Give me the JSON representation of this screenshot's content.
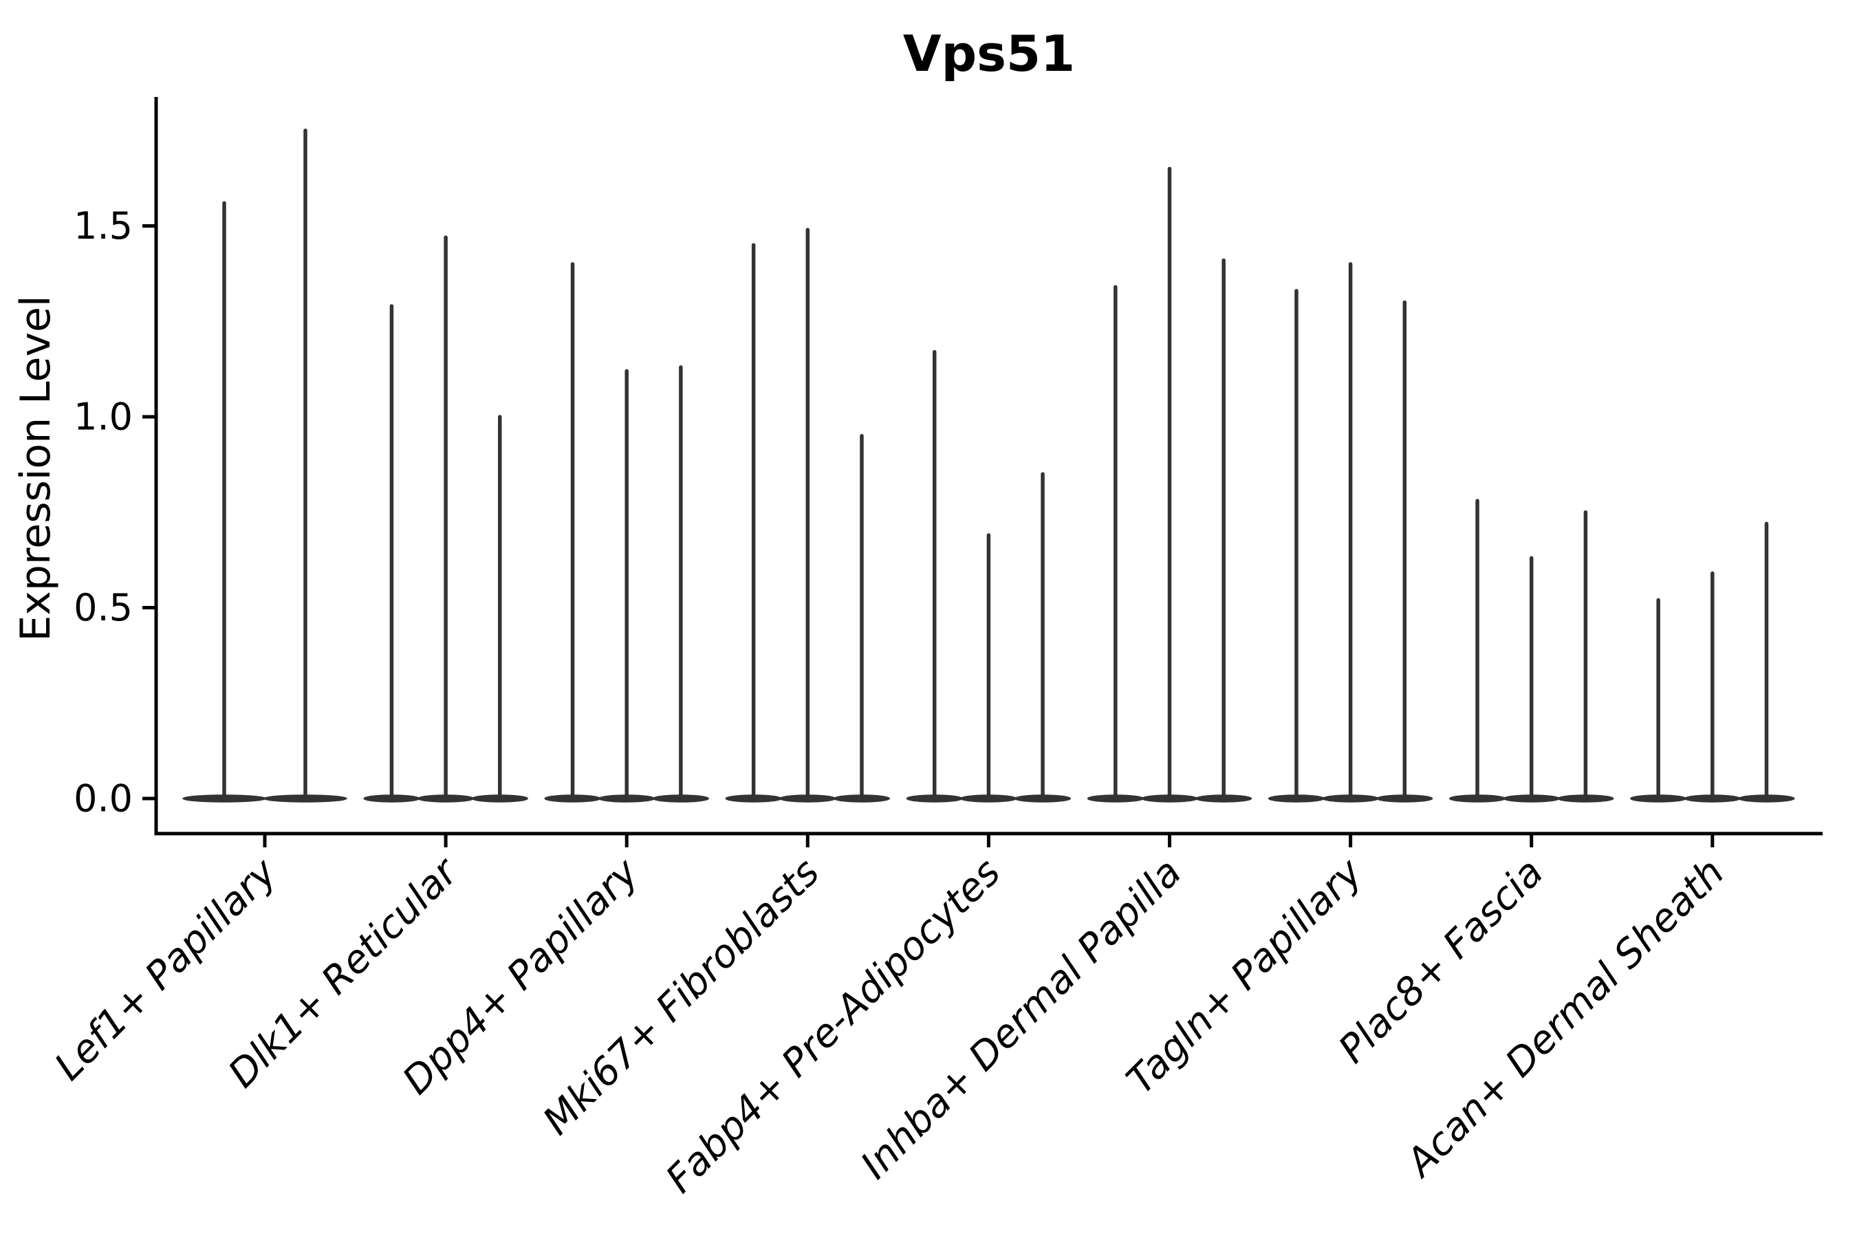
{
  "figure": {
    "title": "Vps51",
    "ylabel": "Expression Level"
  },
  "chart_data": {
    "type": "violin",
    "title": "Vps51",
    "xlabel": "",
    "ylabel": "Expression Level",
    "categories": [
      "Lef1+ Papillary",
      "Dlk1+ Reticular",
      "Dpp4+ Papillary",
      "Mki67+ Fibroblasts",
      "Fabp4+ Pre-Adipocytes",
      "Inhba+ Dermal Papilla",
      "Tagln+ Papillary",
      "Plac8+ Fascia",
      "Acan+ Dermal Sheath"
    ],
    "series": [
      {
        "category": "Lef1+ Papillary",
        "violin_maxima": [
          1.56,
          1.75
        ]
      },
      {
        "category": "Dlk1+ Reticular",
        "violin_maxima": [
          1.29,
          1.47,
          1.0
        ]
      },
      {
        "category": "Dpp4+ Papillary",
        "violin_maxima": [
          1.4,
          1.12,
          1.13
        ]
      },
      {
        "category": "Mki67+ Fibroblasts",
        "violin_maxima": [
          1.45,
          1.49,
          0.95
        ]
      },
      {
        "category": "Fabp4+ Pre-Adipocytes",
        "violin_maxima": [
          1.17,
          0.69,
          0.85
        ]
      },
      {
        "category": "Inhba+ Dermal Papilla",
        "violin_maxima": [
          1.34,
          1.65,
          1.41
        ]
      },
      {
        "category": "Tagln+ Papillary",
        "violin_maxima": [
          1.33,
          1.4,
          1.3
        ]
      },
      {
        "category": "Plac8+ Fascia",
        "violin_maxima": [
          0.78,
          0.63,
          0.75
        ]
      },
      {
        "category": "Acan+ Dermal Sheath",
        "violin_maxima": [
          0.52,
          0.59,
          0.72
        ]
      }
    ],
    "violin_shape_note": "density mass concentrated at 0 (flat lens at baseline) with a thin vertical spike up to each violin's maximum",
    "yticks": [
      "0.0",
      "0.5",
      "1.0",
      "1.5"
    ],
    "ytick_values": [
      0.0,
      0.5,
      1.0,
      1.5
    ],
    "ylim": [
      -0.09,
      1.84
    ],
    "grid": false,
    "legend": "none",
    "x_label_rotation_deg": 45,
    "colors": {
      "violin": "#333333",
      "axis": "#000000",
      "text": "#000000",
      "background": "#ffffff"
    }
  }
}
